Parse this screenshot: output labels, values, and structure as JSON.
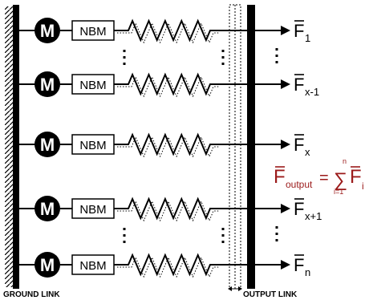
{
  "diagram": {
    "ground_label": "GROUND LINK",
    "output_label": "OUTPUT LINK",
    "motor_symbol": "M",
    "module_label": "NBM",
    "rows": [
      {
        "force": "F",
        "sub": "1"
      },
      {
        "force": "F",
        "sub": "x-1"
      },
      {
        "force": "F",
        "sub": "x"
      },
      {
        "force": "F",
        "sub": "x+1"
      },
      {
        "force": "F",
        "sub": "n"
      }
    ],
    "equation": {
      "lhs": "F",
      "lhs_sub": "output",
      "equals": "=",
      "sum_symbol": "∑",
      "sum_upper": "n",
      "sum_lower": "i=1",
      "rhs": "F",
      "rhs_sub": "i"
    },
    "colors": {
      "line": "#000000",
      "equation": "#9b1a1a",
      "background": "#ffffff"
    }
  }
}
